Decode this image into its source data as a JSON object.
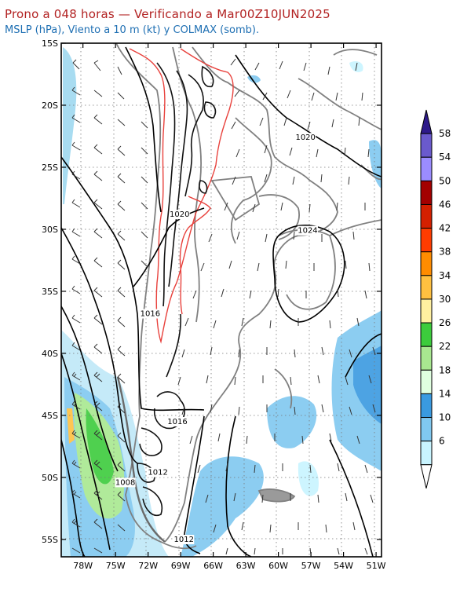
{
  "header": {
    "title": "Prono a 048 horas — Verificando a Mar00Z10JUN2025",
    "subtitle": "MSLP (hPa), Viento a 10 m (kt) y COLMAX (somb)."
  },
  "map": {
    "lat_labels": [
      "15S",
      "20S",
      "25S",
      "30S",
      "35S",
      "40S",
      "45S",
      "50S",
      "55S"
    ],
    "lon_labels": [
      "78W",
      "75W",
      "72W",
      "69W",
      "66W",
      "63W",
      "60W",
      "57W",
      "54W",
      "51W"
    ],
    "pressure_labels": [
      {
        "text": "1020",
        "lon": -57.5,
        "lat": -22.8
      },
      {
        "text": "1024",
        "lon": -57.3,
        "lat": -30.3
      },
      {
        "text": "1020",
        "lon": -69.1,
        "lat": -29.0
      },
      {
        "text": "1016",
        "lon": -71.8,
        "lat": -37.0
      },
      {
        "text": "1016",
        "lon": -69.3,
        "lat": -45.7
      },
      {
        "text": "1012",
        "lon": -71.1,
        "lat": -49.8
      },
      {
        "text": "1008",
        "lon": -74.1,
        "lat": -50.6
      },
      {
        "text": "1012",
        "lon": -68.7,
        "lat": -55.2
      }
    ],
    "colors": {
      "isobar": "#000000",
      "coast": "#808080",
      "red_contour": "#e8413c",
      "wind": "#333333"
    }
  },
  "colorbar": {
    "labels": [
      "58",
      "54",
      "50",
      "46",
      "42",
      "38",
      "34",
      "30",
      "26",
      "22",
      "18",
      "14",
      "10",
      "6"
    ],
    "colors": [
      "#2e1a8a",
      "#6a5acd",
      "#9b8cff",
      "#a30000",
      "#d42000",
      "#ff3c00",
      "#ff8c00",
      "#ffc040",
      "#fff0a0",
      "#3ccc3c",
      "#a8e890",
      "#e0ffe0",
      "#3a9ae0",
      "#80c8f0",
      "#c8f4ff",
      "#ffffff"
    ]
  }
}
